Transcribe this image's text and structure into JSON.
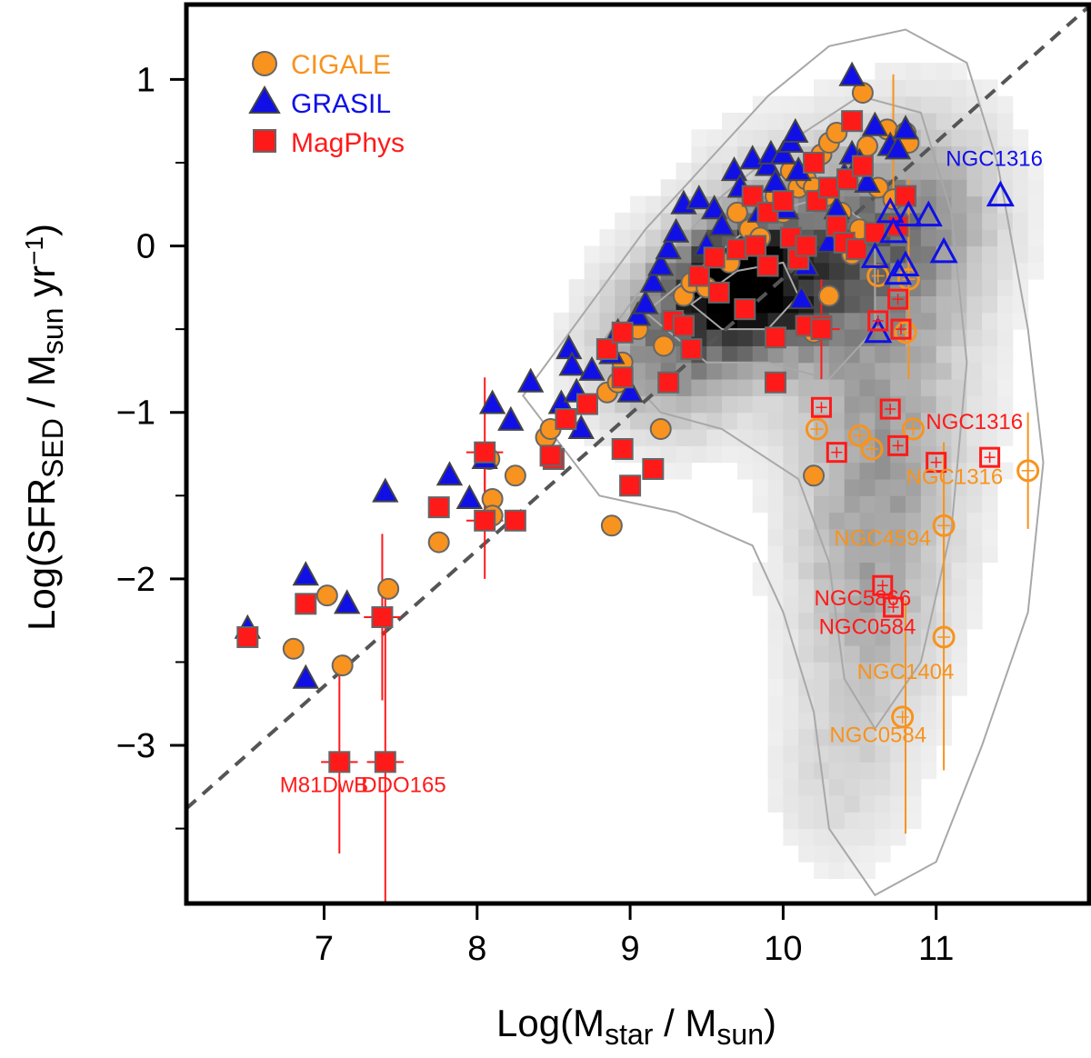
{
  "chart_data": {
    "type": "scatter",
    "xlabel": {
      "base": "Log(M",
      "sub1": "star",
      "mid": " / M",
      "sub2": "sun",
      "end": ")"
    },
    "ylabel": {
      "base": "Log(SFR",
      "sub1": "SED",
      "mid": " / M",
      "sub2": "sun",
      "mid2": " yr",
      "sup": "−1",
      "end": ")"
    },
    "xlim": [
      6.1,
      12.0
    ],
    "ylim": [
      -3.95,
      1.45
    ],
    "xticks": [
      7,
      8,
      9,
      10,
      11
    ],
    "yticks": [
      -3,
      -2,
      -1,
      0,
      1
    ],
    "ytick_labels": [
      "−3",
      "−2",
      "−1",
      "0",
      "1"
    ],
    "grid": false,
    "legend_position": "top-left",
    "colors": {
      "cigale": "#f7931e",
      "grasil": "#1010e6",
      "magphys": "#ff1a1a",
      "marker_edge": "#666666",
      "dashed_line": "#555555",
      "contour": "#a8a8a8"
    },
    "series": [
      {
        "name": "CIGALE",
        "marker": "circle",
        "color": "#f7931e",
        "points": [
          [
            6.8,
            -2.42
          ],
          [
            7.02,
            -2.1
          ],
          [
            7.12,
            -2.52
          ],
          [
            7.42,
            -2.06
          ],
          [
            7.75,
            -1.78
          ],
          [
            8.08,
            -1.28
          ],
          [
            8.1,
            -1.52
          ],
          [
            8.1,
            -1.62
          ],
          [
            8.25,
            -1.38
          ],
          [
            8.45,
            -1.15
          ],
          [
            8.48,
            -1.1
          ],
          [
            8.85,
            -0.88
          ],
          [
            8.88,
            -1.68
          ],
          [
            8.92,
            -0.82
          ],
          [
            8.95,
            -0.7
          ],
          [
            9.05,
            -0.5
          ],
          [
            9.2,
            -1.1
          ],
          [
            9.22,
            -0.6
          ],
          [
            9.3,
            -0.45
          ],
          [
            9.35,
            -0.3
          ],
          [
            9.4,
            -0.22
          ],
          [
            9.5,
            -0.25
          ],
          [
            9.65,
            -0.1
          ],
          [
            9.7,
            0.2
          ],
          [
            9.78,
            0.1
          ],
          [
            9.85,
            0.05
          ],
          [
            9.95,
            0.3
          ],
          [
            10.0,
            0.2
          ],
          [
            10.05,
            0.45
          ],
          [
            10.1,
            0.35
          ],
          [
            10.15,
            0.4
          ],
          [
            10.2,
            0.35
          ],
          [
            10.25,
            0.55
          ],
          [
            10.28,
            0.3
          ],
          [
            10.3,
            0.62
          ],
          [
            10.35,
            0.68
          ],
          [
            10.38,
            0.2
          ],
          [
            10.45,
            -0.05
          ],
          [
            10.5,
            0.1
          ],
          [
            10.52,
            0.92
          ],
          [
            10.55,
            0.6
          ],
          [
            10.62,
            0.35
          ],
          [
            10.68,
            0.7
          ],
          [
            10.72,
            0.28
          ],
          [
            10.8,
            0.68
          ],
          [
            10.82,
            0.62
          ],
          [
            10.2,
            -0.52
          ],
          [
            10.2,
            -1.38
          ],
          [
            10.3,
            -0.3
          ]
        ]
      },
      {
        "name": "GRASIL",
        "marker": "triangle",
        "color": "#1010e6",
        "points": [
          [
            6.5,
            -2.3
          ],
          [
            6.88,
            -1.98
          ],
          [
            6.88,
            -2.6
          ],
          [
            7.15,
            -2.15
          ],
          [
            7.4,
            -1.48
          ],
          [
            7.82,
            -1.38
          ],
          [
            7.95,
            -1.52
          ],
          [
            8.05,
            -1.28
          ],
          [
            8.1,
            -0.95
          ],
          [
            8.22,
            -1.05
          ],
          [
            8.35,
            -0.82
          ],
          [
            8.55,
            -0.95
          ],
          [
            8.6,
            -0.62
          ],
          [
            8.62,
            -0.72
          ],
          [
            8.65,
            -0.88
          ],
          [
            8.68,
            -1.1
          ],
          [
            8.75,
            -0.75
          ],
          [
            8.88,
            -0.65
          ],
          [
            8.92,
            -0.52
          ],
          [
            9.0,
            -0.88
          ],
          [
            9.05,
            -0.42
          ],
          [
            9.1,
            -0.35
          ],
          [
            9.15,
            -0.22
          ],
          [
            9.2,
            -0.12
          ],
          [
            9.25,
            -0.02
          ],
          [
            9.3,
            0.08
          ],
          [
            9.35,
            0.25
          ],
          [
            9.45,
            0.28
          ],
          [
            9.5,
            0.0
          ],
          [
            9.55,
            0.22
          ],
          [
            9.6,
            0.12
          ],
          [
            9.68,
            0.45
          ],
          [
            9.72,
            0.35
          ],
          [
            9.8,
            0.52
          ],
          [
            9.85,
            0.2
          ],
          [
            9.9,
            0.48
          ],
          [
            9.92,
            0.55
          ],
          [
            9.95,
            0.38
          ],
          [
            10.0,
            0.55
          ],
          [
            10.02,
            0.22
          ],
          [
            10.05,
            0.62
          ],
          [
            10.08,
            0.68
          ],
          [
            10.1,
            0.45
          ],
          [
            10.12,
            -0.32
          ],
          [
            10.15,
            -0.12
          ],
          [
            10.3,
            0.02
          ],
          [
            10.35,
            0.22
          ],
          [
            10.4,
            0.42
          ],
          [
            10.45,
            0.55
          ],
          [
            10.5,
            0.5
          ],
          [
            10.55,
            0.38
          ],
          [
            10.6,
            0.72
          ],
          [
            10.7,
            0.6
          ],
          [
            10.75,
            0.58
          ],
          [
            10.8,
            0.7
          ],
          [
            10.45,
            1.02
          ]
        ]
      },
      {
        "name": "MagPhys",
        "marker": "square",
        "color": "#ff1a1a",
        "points": [
          [
            6.5,
            -2.35
          ],
          [
            6.88,
            -2.15
          ],
          [
            7.38,
            -2.23
          ],
          [
            7.1,
            -3.1
          ],
          [
            7.4,
            -3.1
          ],
          [
            7.75,
            -1.57
          ],
          [
            8.05,
            -1.24
          ],
          [
            8.05,
            -1.65
          ],
          [
            8.25,
            -1.65
          ],
          [
            8.5,
            -1.28
          ],
          [
            8.48,
            -1.26
          ],
          [
            8.58,
            -1.04
          ],
          [
            8.72,
            -0.95
          ],
          [
            8.85,
            -0.62
          ],
          [
            8.95,
            -0.52
          ],
          [
            8.95,
            -0.79
          ],
          [
            8.95,
            -1.22
          ],
          [
            9.0,
            -1.44
          ],
          [
            9.15,
            -1.34
          ],
          [
            9.25,
            -0.82
          ],
          [
            9.28,
            -0.45
          ],
          [
            9.35,
            -0.48
          ],
          [
            9.4,
            -0.62
          ],
          [
            9.45,
            -0.18
          ],
          [
            9.55,
            -0.07
          ],
          [
            9.58,
            -0.28
          ],
          [
            9.7,
            -0.02
          ],
          [
            9.75,
            -0.38
          ],
          [
            9.8,
            0.3
          ],
          [
            9.82,
            0.0
          ],
          [
            9.9,
            -0.12
          ],
          [
            9.9,
            0.2
          ],
          [
            9.95,
            -0.55
          ],
          [
            9.95,
            -0.82
          ],
          [
            10.0,
            0.27
          ],
          [
            10.05,
            0.05
          ],
          [
            10.1,
            -0.08
          ],
          [
            10.15,
            0.0
          ],
          [
            10.15,
            -0.48
          ],
          [
            10.2,
            0.5
          ],
          [
            10.22,
            0.27
          ],
          [
            10.25,
            -0.48
          ],
          [
            10.3,
            0.35
          ],
          [
            10.35,
            0.12
          ],
          [
            10.4,
            0.02
          ],
          [
            10.42,
            0.4
          ],
          [
            10.45,
            0.75
          ],
          [
            10.48,
            -0.02
          ],
          [
            10.52,
            0.48
          ],
          [
            10.6,
            0.08
          ],
          [
            10.75,
            0.12
          ],
          [
            10.8,
            0.3
          ],
          [
            10.25,
            -0.5
          ]
        ]
      },
      {
        "name": "",
        "marker": "open-circle",
        "color": "#f7931e",
        "points": [
          [
            10.22,
            -1.1
          ],
          [
            10.5,
            -1.14
          ],
          [
            10.58,
            -1.22
          ],
          [
            10.62,
            -0.18
          ],
          [
            10.8,
            -0.52
          ],
          [
            10.82,
            -0.2
          ],
          [
            10.85,
            -1.1
          ],
          [
            11.05,
            -1.68
          ],
          [
            11.05,
            -2.35
          ],
          [
            10.78,
            -2.83
          ],
          [
            11.6,
            -1.35
          ]
        ]
      },
      {
        "name": "",
        "marker": "open-triangle",
        "color": "#1010e6",
        "points": [
          [
            10.6,
            -0.07
          ],
          [
            10.62,
            -0.52
          ],
          [
            10.7,
            0.2
          ],
          [
            10.72,
            0.08
          ],
          [
            10.75,
            -0.17
          ],
          [
            10.8,
            -0.12
          ],
          [
            10.82,
            0.18
          ],
          [
            10.95,
            0.18
          ],
          [
            11.05,
            -0.04
          ],
          [
            11.42,
            0.3
          ]
        ]
      },
      {
        "name": "",
        "marker": "open-square",
        "color": "#ff1a1a",
        "points": [
          [
            10.25,
            -0.97
          ],
          [
            10.35,
            -1.24
          ],
          [
            10.62,
            -0.45
          ],
          [
            10.7,
            -0.98
          ],
          [
            10.75,
            -1.2
          ],
          [
            10.75,
            -0.32
          ],
          [
            10.77,
            -0.5
          ],
          [
            11.0,
            -1.3
          ],
          [
            11.35,
            -1.27
          ],
          [
            10.65,
            -2.04
          ],
          [
            10.72,
            -2.17
          ]
        ]
      }
    ],
    "fit_line": {
      "style": "dashed",
      "x": [
        6.1,
        12.0
      ],
      "y": [
        -3.38,
        1.44
      ]
    },
    "annotations": [
      {
        "text": "NGC1316",
        "color": "#1010e6",
        "x": 11.38,
        "y": 0.48
      },
      {
        "text": "NGC1316",
        "color": "#ff1a1a",
        "x": 11.25,
        "y": -1.1
      },
      {
        "text": "NGC1316",
        "color": "#f7931e",
        "x": 11.12,
        "y": -1.43
      },
      {
        "text": "NGC4594",
        "color": "#f7931e",
        "x": 10.65,
        "y": -1.8
      },
      {
        "text": "NGC5866",
        "color": "#ff1a1a",
        "x": 10.52,
        "y": -2.16
      },
      {
        "text": "NGC0584",
        "color": "#ff1a1a",
        "x": 10.55,
        "y": -2.33
      },
      {
        "text": "NGC1404",
        "color": "#f7931e",
        "x": 10.8,
        "y": -2.6
      },
      {
        "text": "NGC0584",
        "color": "#f7931e",
        "x": 10.62,
        "y": -2.98
      },
      {
        "text": "M81DwB",
        "color": "#ff1a1a",
        "x": 7.0,
        "y": -3.28
      },
      {
        "text": "DDO165",
        "color": "#ff1a1a",
        "x": 7.52,
        "y": -3.28
      }
    ]
  }
}
